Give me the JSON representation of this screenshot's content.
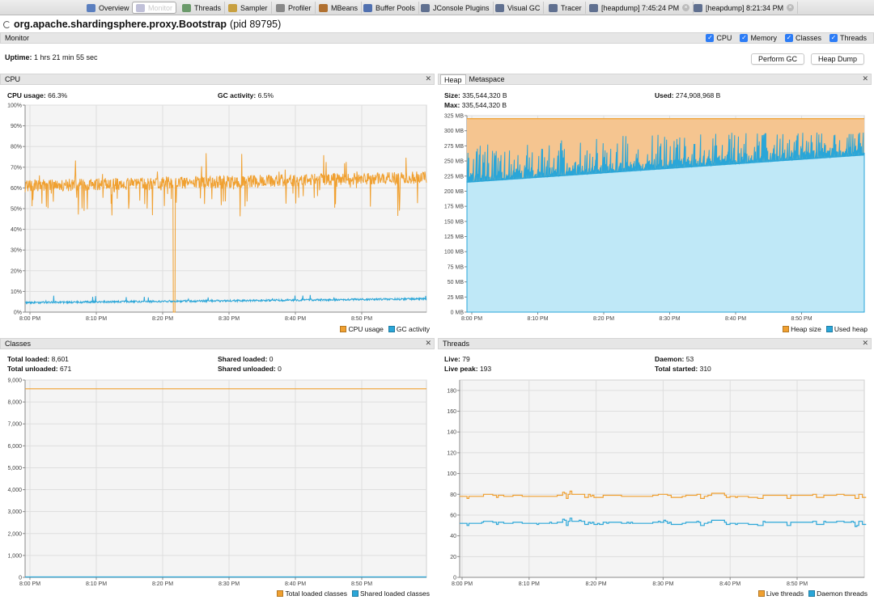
{
  "tabs": [
    {
      "label": "Overview",
      "icon": "overview-icon",
      "color": "#5b7fbf"
    },
    {
      "label": "Monitor",
      "icon": "monitor-icon",
      "color": "#c0c0d8",
      "active": true
    },
    {
      "label": "Threads",
      "icon": "threads-icon",
      "color": "#6b9a6b"
    },
    {
      "label": "Sampler",
      "icon": "sampler-icon",
      "color": "#c8a040"
    },
    {
      "label": "Profiler",
      "icon": "profiler-icon",
      "color": "#888888"
    },
    {
      "label": "MBeans",
      "icon": "mbeans-icon",
      "color": "#b07030"
    },
    {
      "label": "Buffer Pools",
      "icon": "buffer-pools-icon",
      "color": "#5070b0"
    },
    {
      "label": "JConsole Plugins",
      "icon": "jconsole-icon",
      "color": "#607090"
    },
    {
      "label": "Visual GC",
      "icon": "visual-gc-icon",
      "color": "#607090"
    },
    {
      "label": "Tracer",
      "icon": "tracer-icon",
      "color": "#607090"
    },
    {
      "label": "[heapdump] 7:45:24 PM",
      "icon": "heapdump-icon",
      "color": "#607090",
      "closable": true
    },
    {
      "label": "[heapdump] 8:21:34 PM",
      "icon": "heapdump-icon",
      "color": "#607090",
      "closable": true
    }
  ],
  "title": {
    "main": "org.apache.shardingsphere.proxy.Bootstrap",
    "pid": "(pid 89795)"
  },
  "monitor": {
    "label": "Monitor",
    "checks": [
      "CPU",
      "Memory",
      "Classes",
      "Threads"
    ],
    "uptime_label": "Uptime:",
    "uptime_value": "1 hrs 21 min 55 sec",
    "perform_gc": "Perform GC",
    "heap_dump": "Heap Dump"
  },
  "cpu": {
    "header": "CPU",
    "usage_label": "CPU usage:",
    "usage_value": "66.3%",
    "gc_label": "GC activity:",
    "gc_value": "6.5%"
  },
  "heap": {
    "tab_heap": "Heap",
    "tab_meta": "Metaspace",
    "size_label": "Size:",
    "size_value": "335,544,320 B",
    "max_label": "Max:",
    "max_value": "335,544,320 B",
    "used_label": "Used:",
    "used_value": "274,908,968 B"
  },
  "classes": {
    "header": "Classes",
    "total_loaded_label": "Total loaded:",
    "total_loaded_value": "8,601",
    "total_unloaded_label": "Total unloaded:",
    "total_unloaded_value": "671",
    "shared_loaded_label": "Shared loaded:",
    "shared_loaded_value": "0",
    "shared_unloaded_label": "Shared unloaded:",
    "shared_unloaded_value": "0"
  },
  "threads": {
    "header": "Threads",
    "live_label": "Live:",
    "live_value": "79",
    "live_peak_label": "Live peak:",
    "live_peak_value": "193",
    "daemon_label": "Daemon:",
    "daemon_value": "53",
    "total_started_label": "Total started:",
    "total_started_value": "310"
  },
  "colors": {
    "orange": "#f0a030",
    "blue": "#2aa6d8",
    "heap_fill": "#f5c590",
    "used_fill": "#bfe8f7"
  },
  "chart_data": [
    {
      "type": "line",
      "name": "cpu",
      "x": [
        "8:00 PM",
        "8:10 PM",
        "8:20 PM",
        "8:30 PM",
        "8:40 PM",
        "8:50 PM"
      ],
      "yticks": [
        "0%",
        "10%",
        "20%",
        "30%",
        "40%",
        "50%",
        "60%",
        "70%",
        "80%",
        "90%",
        "100%"
      ],
      "ylim": [
        0,
        100
      ],
      "series": [
        {
          "name": "CPU usage",
          "approx_values": [
            62,
            62,
            63,
            64,
            64,
            64,
            63,
            64,
            64,
            65
          ],
          "spike_min_at_822": 0
        },
        {
          "name": "GC activity",
          "approx_values": [
            4.5,
            4.8,
            5.0,
            5.2,
            5.4,
            5.6,
            5.8,
            6.0,
            6.2,
            6.5
          ]
        }
      ]
    },
    {
      "type": "area",
      "name": "heap",
      "x": [
        "8:00 PM",
        "8:10 PM",
        "8:20 PM",
        "8:30 PM",
        "8:40 PM",
        "8:50 PM"
      ],
      "yticks": [
        "0 MB",
        "25 MB",
        "50 MB",
        "75 MB",
        "100 MB",
        "125 MB",
        "150 MB",
        "175 MB",
        "200 MB",
        "225 MB",
        "250 MB",
        "275 MB",
        "300 MB",
        "325 MB"
      ],
      "ylim": [
        0,
        325
      ],
      "series": [
        {
          "name": "Heap size",
          "approx_values": [
            320,
            320,
            320,
            320,
            320,
            320
          ]
        },
        {
          "name": "Used heap",
          "approx_values": [
            215,
            225,
            237,
            245,
            252,
            260
          ]
        }
      ]
    },
    {
      "type": "line",
      "name": "classes",
      "x": [
        "8:00 PM",
        "8:10 PM",
        "8:20 PM",
        "8:30 PM",
        "8:40 PM",
        "8:50 PM"
      ],
      "yticks": [
        "0",
        "1,000",
        "2,000",
        "3,000",
        "4,000",
        "5,000",
        "6,000",
        "7,000",
        "8,000",
        "9,000"
      ],
      "ylim": [
        0,
        9000
      ],
      "series": [
        {
          "name": "Total loaded classes",
          "approx_values": [
            8601,
            8601,
            8601,
            8601,
            8601,
            8601
          ]
        },
        {
          "name": "Shared loaded classes",
          "approx_values": [
            0,
            0,
            0,
            0,
            0,
            0
          ]
        }
      ]
    },
    {
      "type": "line",
      "name": "threads",
      "x": [
        "8:00 PM",
        "8:10 PM",
        "8:20 PM",
        "8:30 PM",
        "8:40 PM",
        "8:50 PM"
      ],
      "yticks": [
        "0",
        "20",
        "40",
        "60",
        "80",
        "100",
        "120",
        "140",
        "160",
        "180"
      ],
      "ylim": [
        0,
        190
      ],
      "series": [
        {
          "name": "Live threads",
          "approx_values": [
            78,
            80,
            79,
            78,
            77,
            79
          ]
        },
        {
          "name": "Daemon threads",
          "approx_values": [
            52,
            53,
            52,
            51,
            51,
            53
          ]
        }
      ]
    }
  ]
}
